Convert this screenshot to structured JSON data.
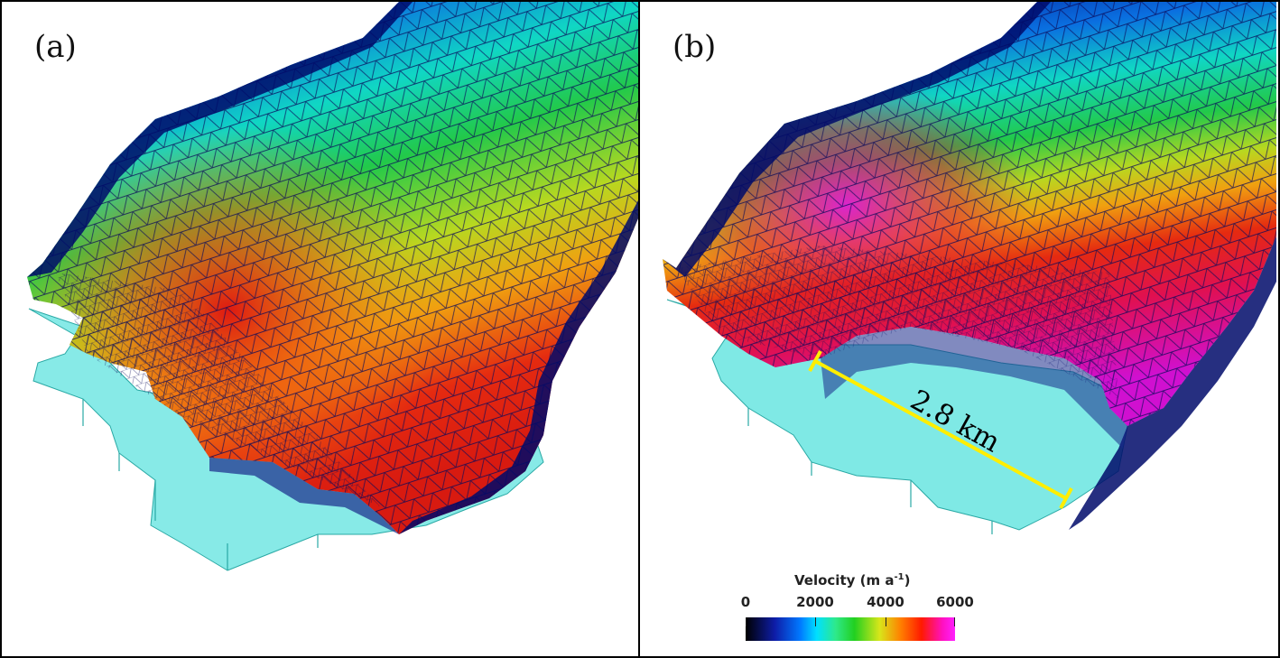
{
  "panels": [
    {
      "label": "(a)"
    },
    {
      "label": "(b)",
      "distance_annotation": "2.8 km"
    }
  ],
  "colorbar": {
    "title": "Velocity (m a",
    "title_exponent": "-1",
    "title_close": ")",
    "ticks": [
      "0",
      "2000",
      "4000",
      "6000"
    ],
    "range": [
      0,
      6000
    ]
  },
  "colors": {
    "calved_ice": "#5fe3df",
    "measure_line": "#ffee00",
    "mesh_lines": "#0a0a5a"
  }
}
